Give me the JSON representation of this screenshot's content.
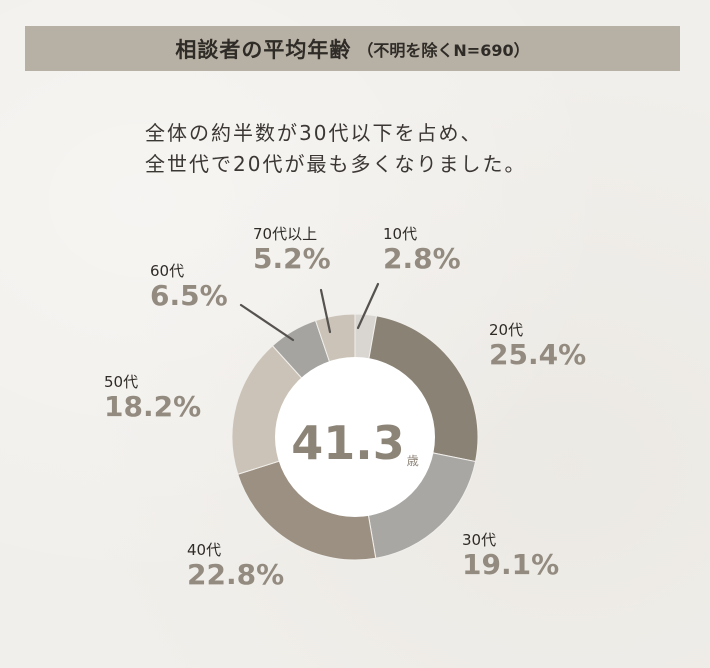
{
  "header": {
    "title": "相談者の平均年齢",
    "subtitle": "（不明を除くN=690）"
  },
  "description": {
    "line1": "全体の約半数が30代以下を占め、",
    "line2": "全世代で20代が最も多くなりました。"
  },
  "center": {
    "value": "41.3",
    "unit": "歳"
  },
  "labels": {
    "teens": {
      "cat": "10代",
      "pct": "2.8%"
    },
    "twenties": {
      "cat": "20代",
      "pct": "25.4%"
    },
    "thirties": {
      "cat": "30代",
      "pct": "19.1%"
    },
    "forties": {
      "cat": "40代",
      "pct": "22.8%"
    },
    "fifties": {
      "cat": "50代",
      "pct": "18.2%"
    },
    "sixties": {
      "cat": "60代",
      "pct": "6.5%"
    },
    "seventies": {
      "cat": "70代以上",
      "pct": "5.2%"
    }
  },
  "colors": {
    "teens": "#d9d6d2",
    "twenties": "#8a8275",
    "thirties": "#a9a7a4",
    "forties": "#9c9082",
    "fifties": "#cbc3b7",
    "sixties": "#a5a4a1",
    "seventies": "#cbc3b7"
  },
  "chart_data": {
    "type": "pie",
    "title": "相談者の平均年齢（不明を除くN=690）",
    "categories": [
      "10代",
      "20代",
      "30代",
      "40代",
      "50代",
      "60代",
      "70代以上"
    ],
    "values": [
      2.8,
      25.4,
      19.1,
      22.8,
      18.2,
      6.5,
      5.2
    ],
    "unit": "%",
    "donut": true,
    "center_label": "41.3歳",
    "start_angle": "12 o'clock, clockwise",
    "annotation": "全体の約半数が30代以下を占め、全世代で20代が最も多くなりました。"
  }
}
